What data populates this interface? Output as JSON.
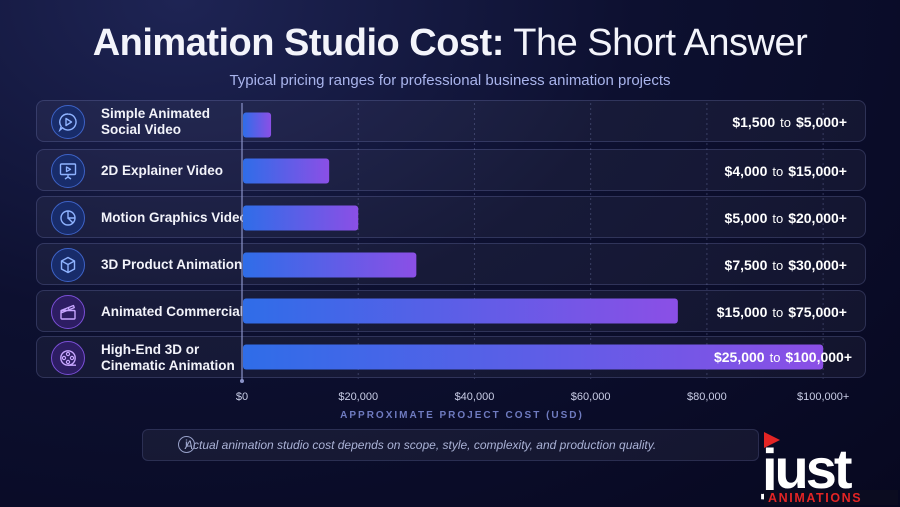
{
  "header": {
    "title_bold": "Animation Studio Cost:",
    "title_light": "The Short Answer",
    "subtitle": "Typical pricing ranges for professional business animation projects"
  },
  "rows": [
    {
      "label": "Simple Animated Social Video",
      "low": "$1,500",
      "high": "$5,000+",
      "to": "to",
      "icon": "play-bubble-icon",
      "accent": "#3a74e8"
    },
    {
      "label": "2D Explainer Video",
      "low": "$4,000",
      "high": "$15,000+",
      "to": "to",
      "icon": "presentation-screen-icon",
      "accent": "#3a74e8"
    },
    {
      "label": "Motion Graphics Video",
      "low": "$5,000",
      "high": "$20,000+",
      "to": "to",
      "icon": "pie-chart-icon",
      "accent": "#3a74e8"
    },
    {
      "label": "3D Product Animation",
      "low": "$7,500",
      "high": "$30,000+",
      "to": "to",
      "icon": "cube-icon",
      "accent": "#3a74e8"
    },
    {
      "label": "Animated Commercial",
      "low": "$15,000",
      "high": "$75,000+",
      "to": "to",
      "icon": "clapperboard-icon",
      "accent": "#8a4fe0"
    },
    {
      "label": "High-End 3D or Cinematic Animation",
      "low": "$25,000",
      "high": "$100,000+",
      "to": "to",
      "icon": "film-reel-icon",
      "accent": "#8a4fe0"
    }
  ],
  "chart_data": {
    "type": "bar",
    "orientation": "horizontal",
    "categories": [
      "Simple Animated Social Video",
      "2D Explainer Video",
      "Motion Graphics Video",
      "3D Product Animation",
      "Animated Commercial",
      "High-End 3D or Cinematic Animation"
    ],
    "values": [
      5000,
      15000,
      20000,
      30000,
      75000,
      100000
    ],
    "xlim": [
      0,
      106000
    ],
    "x_ticks": [
      0,
      20000,
      40000,
      60000,
      80000,
      100000
    ],
    "x_tick_labels": [
      "$0",
      "$20,000",
      "$40,000",
      "$60,000",
      "$80,000",
      "$100,000+"
    ],
    "xlabel": "APPROXIMATE PROJECT COST (USD)",
    "grid": "vertical dashed",
    "bar_gradient": [
      "#2f6de8",
      "#8b4fe6"
    ]
  },
  "note": {
    "icon": "info-icon",
    "icon_glyph": "i",
    "text": "Actual animation studio cost depends on scope, style, complexity, and production quality."
  },
  "logo": {
    "word": "just",
    "tagline": "ANIMATIONS",
    "colors": {
      "text": "#ffffff",
      "accent": "#e32424"
    }
  }
}
